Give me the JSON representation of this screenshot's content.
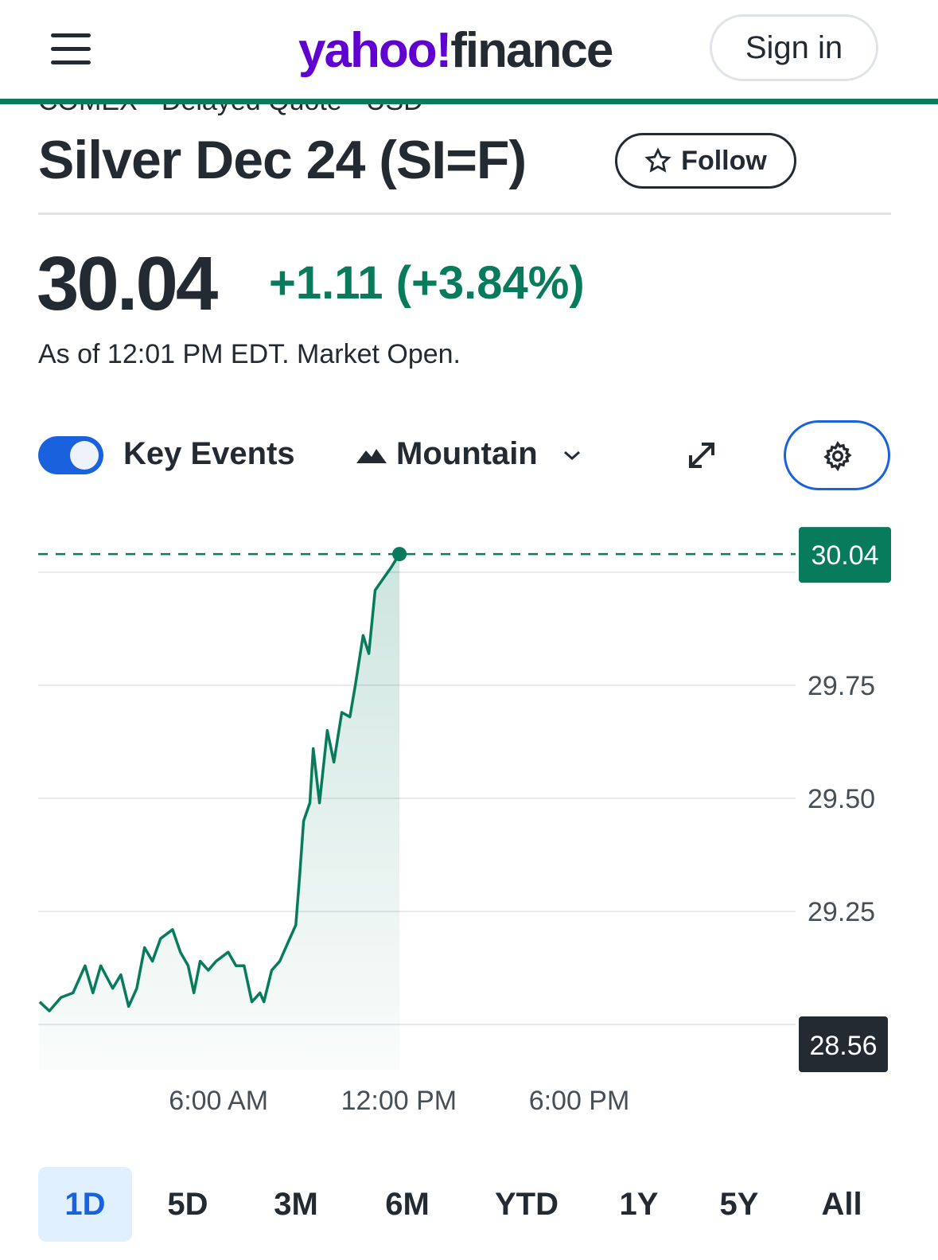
{
  "header": {
    "logo_left": "yahoo!",
    "logo_right": "finance",
    "sign_in": "Sign in"
  },
  "quote": {
    "exchange_line": "COMEX - Delayed Quote - USD",
    "title": "Silver Dec 24 (SI=F)",
    "follow": "Follow",
    "price": "30.04",
    "change": "+1.11",
    "change_pct": "(+3.84%)",
    "as_of": "As of 12:01 PM EDT. Market Open."
  },
  "controls": {
    "key_events": "Key Events",
    "chart_style": "Mountain"
  },
  "chart_data": {
    "type": "line",
    "color": "#077b5c",
    "xlim": [
      0,
      25.2
    ],
    "xticks": [
      {
        "value": 6,
        "label": "6:00 AM"
      },
      {
        "value": 12,
        "label": "12:00 PM"
      },
      {
        "value": 18,
        "label": "6:00 PM"
      }
    ],
    "ylim": [
      28.9,
      30.1
    ],
    "yticks": [
      {
        "value": 29.25,
        "label": "29.25"
      },
      {
        "value": 29.5,
        "label": "29.50"
      },
      {
        "value": 29.75,
        "label": "29.75"
      }
    ],
    "grid_values": [
      29,
      30
    ],
    "grid": true,
    "low_badge": 28.56,
    "x": [
      0.05,
      0.37,
      0.76,
      1.16,
      1.56,
      1.82,
      2.08,
      2.48,
      2.75,
      3.01,
      3.28,
      3.54,
      3.8,
      4.07,
      4.47,
      4.73,
      4.99,
      5.18,
      5.39,
      5.66,
      5.92,
      6.32,
      6.58,
      6.85,
      7.11,
      7.38,
      7.51,
      7.77,
      8.04,
      8.3,
      8.57,
      8.7,
      8.83,
      9.04,
      9.15,
      9.36,
      9.62,
      9.84,
      10.1,
      10.37,
      10.55,
      10.81,
      11.0,
      11.21,
      11.42,
      11.74,
      12.02
    ],
    "series": [
      {
        "values": [
          29.05,
          29.03,
          29.06,
          29.07,
          29.13,
          29.07,
          29.13,
          29.08,
          29.11,
          29.04,
          29.08,
          29.17,
          29.14,
          29.19,
          29.21,
          29.16,
          29.13,
          29.07,
          29.14,
          29.12,
          29.14,
          29.16,
          29.13,
          29.13,
          29.05,
          29.07,
          29.05,
          29.12,
          29.14,
          29.18,
          29.22,
          29.33,
          29.45,
          29.49,
          29.61,
          29.49,
          29.65,
          29.58,
          29.69,
          29.68,
          29.75,
          29.86,
          29.82,
          29.96,
          29.98,
          30.01,
          30.04
        ]
      }
    ]
  },
  "ranges": [
    "1D",
    "5D",
    "3M",
    "6M",
    "YTD",
    "1Y",
    "5Y",
    "All"
  ]
}
